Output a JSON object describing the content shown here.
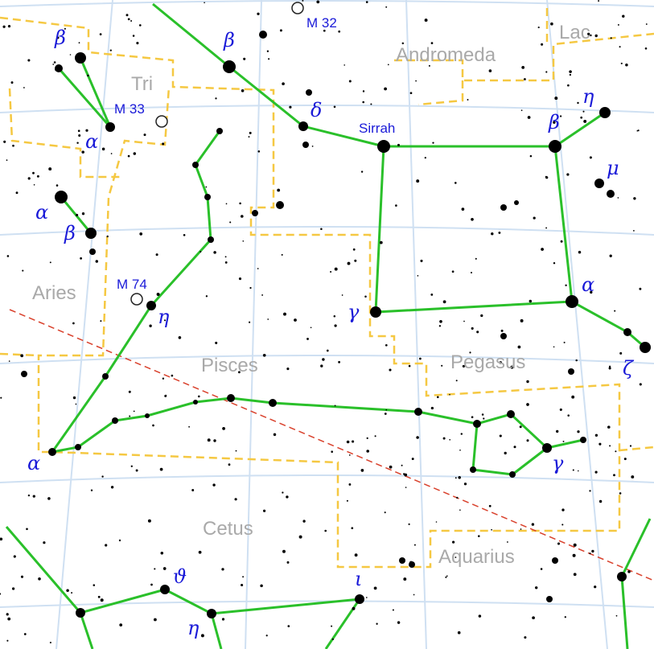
{
  "constellations": [
    "Andromeda",
    "Lac",
    "Tri",
    "Aries",
    "Pisces",
    "Pegasus",
    "Cetus",
    "Aquarius"
  ],
  "deep_sky": [
    "M 32",
    "M 33",
    "M 74"
  ],
  "star_names": [
    "Sirrah"
  ],
  "star_labels": [
    "β",
    "α",
    "α",
    "β",
    "β",
    "δ",
    "η",
    "β",
    "μ",
    "α",
    "ζ",
    "γ",
    "η",
    "α",
    "γ",
    "ϑ",
    "η",
    "ι"
  ]
}
